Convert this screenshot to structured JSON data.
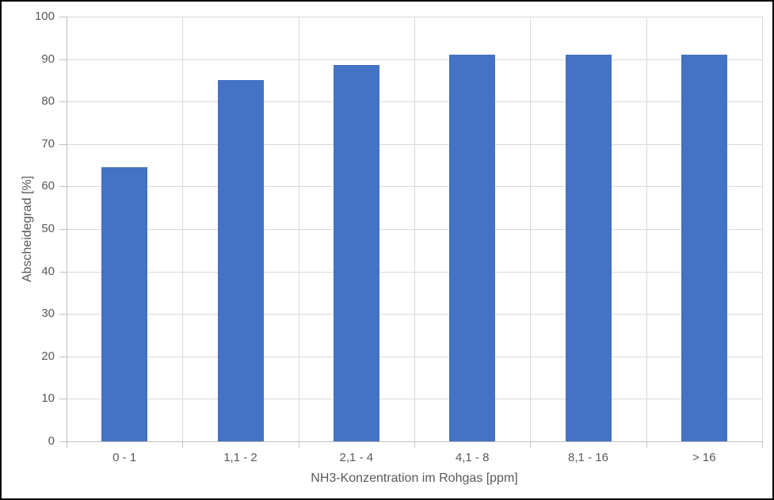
{
  "chart_data": {
    "type": "bar",
    "title": "",
    "categories": [
      "0 - 1",
      "1,1 - 2",
      "2,1 - 4",
      "4,1 - 8",
      "8,1 - 16",
      "> 16"
    ],
    "values": [
      64.5,
      85.0,
      88.6,
      91.0,
      91.1,
      91.1
    ],
    "xlabel": "NH3-Konzentration im Rohgas [ppm]",
    "ylabel": "Abscheidegrad [%]",
    "ylim": [
      0,
      100
    ],
    "yticks": [
      0,
      10,
      20,
      30,
      40,
      50,
      60,
      70,
      80,
      90,
      100
    ],
    "grid": true,
    "legend": false,
    "colors": {
      "bar": "#4472C4",
      "gridline": "#D9D9D9",
      "axis": "#BFBFBF",
      "text": "#595959",
      "background": "#FFFFFF",
      "frame_border": "#000000"
    }
  }
}
